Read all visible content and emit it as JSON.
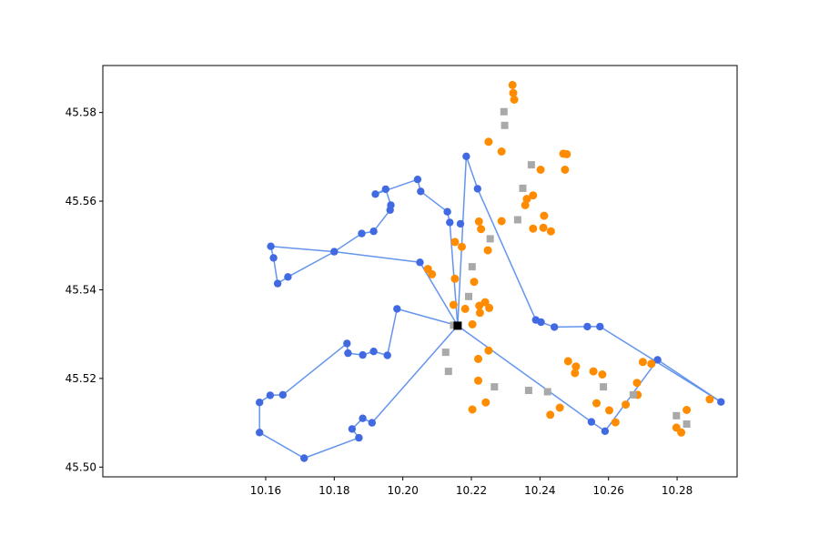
{
  "chart_data": {
    "type": "scatter",
    "title": "",
    "xlabel": "",
    "ylabel": "",
    "xlim": [
      10.1125,
      10.2975
    ],
    "ylim": [
      45.4978,
      45.5906
    ],
    "xticks": [
      10.16,
      10.18,
      10.2,
      10.22,
      10.24,
      10.26,
      10.28
    ],
    "xtick_labels": [
      "10.16",
      "10.18",
      "10.20",
      "10.22",
      "10.24",
      "10.26",
      "10.28"
    ],
    "yticks": [
      45.5,
      45.52,
      45.54,
      45.56,
      45.58
    ],
    "ytick_labels": [
      "45.50",
      "45.52",
      "45.54",
      "45.56",
      "45.58"
    ],
    "grid": false,
    "series": [
      {
        "kind": "line",
        "color": "#6495ed",
        "marker_color": "#4169e1",
        "segments": [
          [
            [
              10.216,
              45.5319
            ],
            [
              10.205,
              45.5462
            ],
            [
              10.18,
              45.5486
            ],
            [
              10.1615,
              45.5498
            ],
            [
              10.1623,
              45.5472
            ],
            [
              10.1635,
              45.5414
            ],
            [
              10.1665,
              45.5429
            ],
            [
              10.18,
              45.5486
            ],
            [
              10.188,
              45.5527
            ],
            [
              10.1915,
              45.5532
            ],
            [
              10.1963,
              45.558
            ],
            [
              10.1965,
              45.5591
            ],
            [
              10.195,
              45.5627
            ],
            [
              10.192,
              45.5616
            ],
            [
              10.2043,
              45.5649
            ],
            [
              10.2052,
              45.5622
            ],
            [
              10.213,
              45.5576
            ],
            [
              10.2137,
              45.5552
            ],
            [
              10.216,
              45.5319
            ]
          ],
          [
            [
              10.216,
              45.5319
            ],
            [
              10.2185,
              45.5701
            ],
            [
              10.2218,
              45.5628
            ],
            [
              10.2388,
              45.5332
            ],
            [
              10.2403,
              45.5327
            ],
            [
              10.2442,
              45.5316
            ],
            [
              10.2538,
              45.5317
            ],
            [
              10.2575,
              45.5317
            ],
            [
              10.2928,
              45.5147
            ],
            [
              10.2743,
              45.5242
            ],
            [
              10.259,
              45.5081
            ],
            [
              10.255,
              45.5102
            ],
            [
              10.216,
              45.5319
            ]
          ],
          [
            [
              10.216,
              45.5319
            ],
            [
              10.1983,
              45.5357
            ],
            [
              10.1955,
              45.5252
            ],
            [
              10.1915,
              45.5261
            ],
            [
              10.1883,
              45.5253
            ],
            [
              10.184,
              45.5257
            ],
            [
              10.1837,
              45.5279
            ],
            [
              10.165,
              45.5163
            ],
            [
              10.1613,
              45.5162
            ],
            [
              10.1582,
              45.5146
            ],
            [
              10.1582,
              45.5078
            ],
            [
              10.1712,
              45.502
            ],
            [
              10.1872,
              45.5066
            ],
            [
              10.1852,
              45.5086
            ],
            [
              10.1883,
              45.511
            ],
            [
              10.191,
              45.51
            ],
            [
              10.216,
              45.5319
            ]
          ]
        ],
        "marker_points": [
          [
            10.205,
            45.5462
          ],
          [
            10.18,
            45.5486
          ],
          [
            10.1615,
            45.5498
          ],
          [
            10.1623,
            45.5472
          ],
          [
            10.1635,
            45.5414
          ],
          [
            10.1665,
            45.5429
          ],
          [
            10.188,
            45.5527
          ],
          [
            10.1915,
            45.5532
          ],
          [
            10.1963,
            45.558
          ],
          [
            10.1965,
            45.5591
          ],
          [
            10.195,
            45.5627
          ],
          [
            10.192,
            45.5616
          ],
          [
            10.2043,
            45.5649
          ],
          [
            10.2052,
            45.5622
          ],
          [
            10.213,
            45.5576
          ],
          [
            10.2137,
            45.5552
          ],
          [
            10.2168,
            45.5549
          ],
          [
            10.2185,
            45.5701
          ],
          [
            10.2218,
            45.5628
          ],
          [
            10.2388,
            45.5332
          ],
          [
            10.2403,
            45.5327
          ],
          [
            10.2442,
            45.5316
          ],
          [
            10.2538,
            45.5317
          ],
          [
            10.2575,
            45.5317
          ],
          [
            10.2928,
            45.5147
          ],
          [
            10.2743,
            45.5242
          ],
          [
            10.259,
            45.5081
          ],
          [
            10.255,
            45.5102
          ],
          [
            10.1983,
            45.5357
          ],
          [
            10.1955,
            45.5252
          ],
          [
            10.1915,
            45.5261
          ],
          [
            10.1883,
            45.5253
          ],
          [
            10.184,
            45.5257
          ],
          [
            10.1837,
            45.5279
          ],
          [
            10.165,
            45.5163
          ],
          [
            10.1613,
            45.5162
          ],
          [
            10.1582,
            45.5146
          ],
          [
            10.1582,
            45.5078
          ],
          [
            10.1712,
            45.502
          ],
          [
            10.1872,
            45.5066
          ],
          [
            10.1852,
            45.5086
          ],
          [
            10.1883,
            45.511
          ],
          [
            10.191,
            45.51
          ]
        ]
      },
      {
        "kind": "scatter",
        "marker": "circle",
        "color": "#ff8c00",
        "points": [
          [
            10.232,
            45.5862
          ],
          [
            10.2322,
            45.5844
          ],
          [
            10.2325,
            45.5829
          ],
          [
            10.225,
            45.5734
          ],
          [
            10.2288,
            45.5712
          ],
          [
            10.2468,
            45.5707
          ],
          [
            10.2478,
            45.5706
          ],
          [
            10.2402,
            45.5671
          ],
          [
            10.2473,
            45.5671
          ],
          [
            10.238,
            45.5613
          ],
          [
            10.2362,
            45.5605
          ],
          [
            10.2357,
            45.5591
          ],
          [
            10.2412,
            45.5567
          ],
          [
            10.2222,
            45.5554
          ],
          [
            10.2228,
            45.5537
          ],
          [
            10.2288,
            45.5555
          ],
          [
            10.238,
            45.5538
          ],
          [
            10.241,
            45.554
          ],
          [
            10.2432,
            45.5532
          ],
          [
            10.2152,
            45.5508
          ],
          [
            10.2172,
            45.5497
          ],
          [
            10.2248,
            45.5489
          ],
          [
            10.2073,
            45.5447
          ],
          [
            10.2085,
            45.5435
          ],
          [
            10.2152,
            45.5425
          ],
          [
            10.2208,
            45.5418
          ],
          [
            10.2148,
            45.5366
          ],
          [
            10.224,
            45.5372
          ],
          [
            10.2223,
            45.5364
          ],
          [
            10.2252,
            45.5359
          ],
          [
            10.2182,
            45.5357
          ],
          [
            10.2225,
            45.5348
          ],
          [
            10.2203,
            45.5322
          ],
          [
            10.225,
            45.5263
          ],
          [
            10.222,
            45.5244
          ],
          [
            10.2482,
            45.5239
          ],
          [
            10.2505,
            45.5227
          ],
          [
            10.2502,
            45.5212
          ],
          [
            10.2556,
            45.5216
          ],
          [
            10.2582,
            45.5209
          ],
          [
            10.222,
            45.5195
          ],
          [
            10.2683,
            45.519
          ],
          [
            10.27,
            45.5237
          ],
          [
            10.2725,
            45.5233
          ],
          [
            10.2242,
            45.5146
          ],
          [
            10.2565,
            45.5144
          ],
          [
            10.2602,
            45.5128
          ],
          [
            10.2458,
            45.5134
          ],
          [
            10.243,
            45.5118
          ],
          [
            10.2203,
            45.513
          ],
          [
            10.265,
            45.5141
          ],
          [
            10.2685,
            45.5163
          ],
          [
            10.262,
            45.5101
          ],
          [
            10.2895,
            45.5153
          ],
          [
            10.2828,
            45.5129
          ],
          [
            10.2798,
            45.5089
          ],
          [
            10.2812,
            45.5078
          ]
        ]
      },
      {
        "kind": "scatter",
        "marker": "square",
        "color": "#a9a9a9",
        "points": [
          [
            10.2295,
            45.5802
          ],
          [
            10.2297,
            45.5771
          ],
          [
            10.2375,
            45.5682
          ],
          [
            10.235,
            45.5629
          ],
          [
            10.2335,
            45.5558
          ],
          [
            10.2255,
            45.5515
          ],
          [
            10.2202,
            45.5452
          ],
          [
            10.2192,
            45.5385
          ],
          [
            10.2148,
            45.532
          ],
          [
            10.2125,
            45.5259
          ],
          [
            10.2133,
            45.5216
          ],
          [
            10.2267,
            45.5181
          ],
          [
            10.2367,
            45.5173
          ],
          [
            10.2422,
            45.517
          ],
          [
            10.2585,
            45.5181
          ],
          [
            10.2672,
            45.5163
          ],
          [
            10.2798,
            45.5116
          ],
          [
            10.2828,
            45.5097
          ]
        ]
      },
      {
        "kind": "scatter",
        "marker": "square",
        "color": "#000000",
        "points": [
          [
            10.216,
            45.5319
          ]
        ]
      }
    ]
  }
}
